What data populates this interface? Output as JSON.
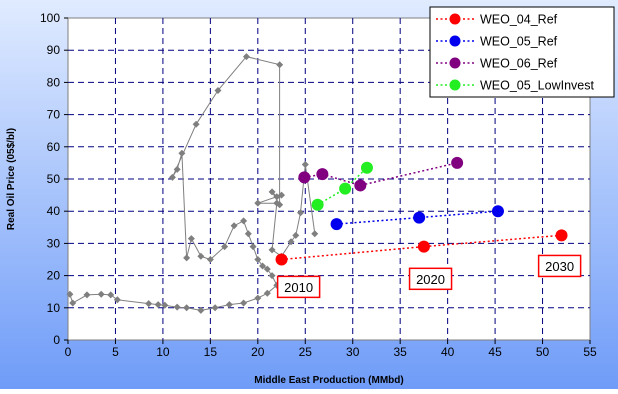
{
  "chart_data": {
    "type": "scatter",
    "xlabel": "Middle East Production (MMbd)",
    "ylabel": "Real Oil Price (05$/bl)",
    "xlim": [
      0,
      55
    ],
    "ylim": [
      0,
      100
    ],
    "xticks": [
      0,
      5,
      10,
      15,
      20,
      25,
      30,
      35,
      40,
      45,
      50,
      55
    ],
    "yticks": [
      0,
      10,
      20,
      30,
      40,
      50,
      60,
      70,
      80,
      90,
      100
    ],
    "grid": true,
    "legend_position": "top-right",
    "history": {
      "color": "#7f7f7f",
      "points": [
        [
          0.2,
          14.2
        ],
        [
          0.5,
          11.5
        ],
        [
          2.0,
          14.0
        ],
        [
          3.5,
          14.2
        ],
        [
          4.5,
          14.0
        ],
        [
          5.2,
          12.5
        ],
        [
          8.5,
          11.3
        ],
        [
          9.5,
          11.0
        ],
        [
          10.2,
          10.8
        ],
        [
          11.5,
          10.2
        ],
        [
          12.5,
          10.0
        ],
        [
          14.0,
          9.2
        ],
        [
          15.5,
          10.0
        ],
        [
          17.0,
          11.0
        ],
        [
          18.5,
          11.5
        ],
        [
          20.0,
          13.0
        ],
        [
          21.0,
          14.5
        ],
        [
          22.0,
          17.0
        ],
        [
          21.5,
          20.0
        ],
        [
          21.0,
          22.0
        ],
        [
          20.5,
          23.0
        ],
        [
          20.0,
          25.0
        ],
        [
          19.5,
          29.0
        ],
        [
          19.0,
          33.0
        ],
        [
          18.5,
          37.0
        ],
        [
          17.5,
          35.5
        ],
        [
          16.5,
          29.0
        ],
        [
          15.0,
          25.0
        ],
        [
          14.0,
          26.0
        ],
        [
          13.0,
          31.5
        ],
        [
          12.5,
          25.5
        ],
        [
          12.0,
          58.0
        ],
        [
          11.5,
          53.0
        ],
        [
          11.0,
          50.5
        ],
        [
          13.5,
          67.0
        ],
        [
          15.8,
          77.5
        ],
        [
          18.8,
          88.0
        ],
        [
          22.3,
          85.5
        ],
        [
          22.3,
          42.0
        ],
        [
          21.5,
          46.0
        ],
        [
          22.0,
          44.5
        ],
        [
          22.5,
          45.0
        ],
        [
          20.0,
          42.5
        ],
        [
          22.0,
          42.5
        ],
        [
          21.5,
          28.0
        ],
        [
          22.5,
          26.0
        ],
        [
          23.5,
          30.5
        ],
        [
          24.0,
          32.5
        ],
        [
          24.5,
          39.5
        ],
        [
          25.0,
          54.5
        ],
        [
          26.0,
          33.0
        ]
      ]
    },
    "series": [
      {
        "name": "WEO_04_Ref",
        "color": "#ff0000",
        "points": [
          [
            22.5,
            25.0
          ],
          [
            37.5,
            29.0
          ],
          [
            52.0,
            32.5
          ]
        ]
      },
      {
        "name": "WEO_05_Ref",
        "color": "#0000ee",
        "points": [
          [
            28.3,
            36.0
          ],
          [
            37.0,
            38.0
          ],
          [
            45.3,
            40.0
          ]
        ]
      },
      {
        "name": "WEO_06_Ref",
        "color": "#800080",
        "points": [
          [
            24.9,
            50.5
          ],
          [
            26.8,
            51.5
          ],
          [
            30.8,
            48.0
          ],
          [
            41.0,
            55.0
          ]
        ]
      },
      {
        "name": "WEO_05_LowInvest",
        "color": "#22ee22",
        "points": [
          [
            26.3,
            42.0
          ],
          [
            29.2,
            47.0
          ],
          [
            31.5,
            53.5
          ]
        ]
      }
    ],
    "annotations": [
      {
        "text": "2010",
        "x": 24.3,
        "y": 16.5
      },
      {
        "text": "2020",
        "x": 38.2,
        "y": 19.0
      },
      {
        "text": "2030",
        "x": 51.8,
        "y": 23.0
      }
    ]
  }
}
